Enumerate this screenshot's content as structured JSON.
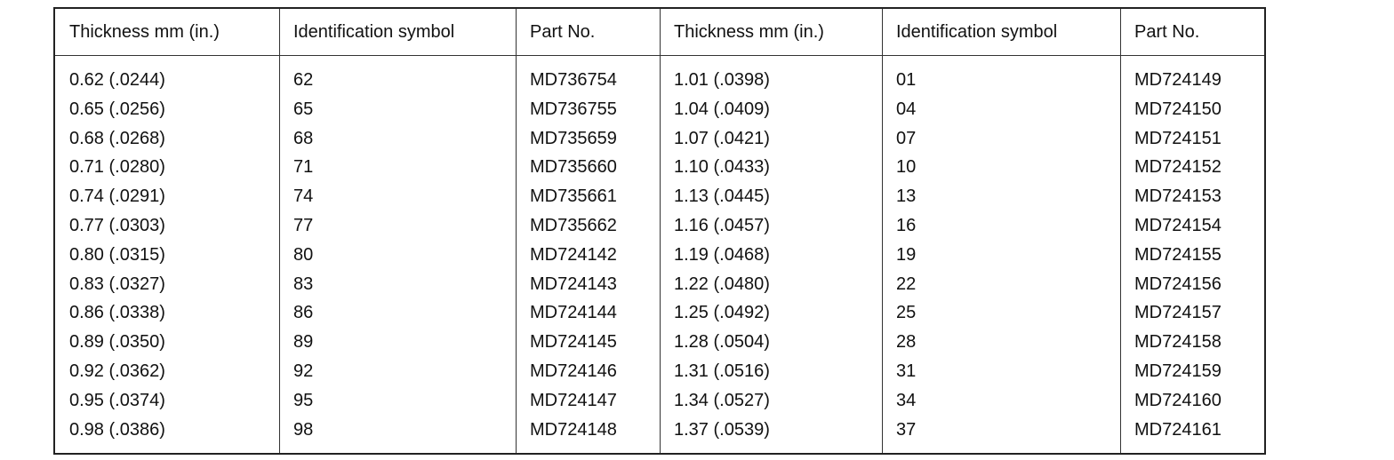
{
  "table": {
    "headers": [
      "Thickness mm (in.)",
      "Identification symbol",
      "Part No.",
      "Thickness mm (in.)",
      "Identification symbol",
      "Part No."
    ],
    "rows": [
      [
        "0.62 (.0244)",
        "62",
        "MD736754",
        "1.01 (.0398)",
        "01",
        "MD724149"
      ],
      [
        "0.65 (.0256)",
        "65",
        "MD736755",
        "1.04 (.0409)",
        "04",
        "MD724150"
      ],
      [
        "0.68 (.0268)",
        "68",
        "MD735659",
        "1.07 (.0421)",
        "07",
        "MD724151"
      ],
      [
        "0.71 (.0280)",
        "71",
        "MD735660",
        "1.10 (.0433)",
        "10",
        "MD724152"
      ],
      [
        "0.74 (.0291)",
        "74",
        "MD735661",
        "1.13 (.0445)",
        "13",
        "MD724153"
      ],
      [
        "0.77 (.0303)",
        "77",
        "MD735662",
        "1.16 (.0457)",
        "16",
        "MD724154"
      ],
      [
        "0.80 (.0315)",
        "80",
        "MD724142",
        "1.19 (.0468)",
        "19",
        "MD724155"
      ],
      [
        "0.83 (.0327)",
        "83",
        "MD724143",
        "1.22 (.0480)",
        "22",
        "MD724156"
      ],
      [
        "0.86 (.0338)",
        "86",
        "MD724144",
        "1.25 (.0492)",
        "25",
        "MD724157"
      ],
      [
        "0.89 (.0350)",
        "89",
        "MD724145",
        "1.28 (.0504)",
        "28",
        "MD724158"
      ],
      [
        "0.92 (.0362)",
        "92",
        "MD724146",
        "1.31 (.0516)",
        "31",
        "MD724159"
      ],
      [
        "0.95 (.0374)",
        "95",
        "MD724147",
        "1.34 (.0527)",
        "34",
        "MD724160"
      ],
      [
        "0.98 (.0386)",
        "98",
        "MD724148",
        "1.37 (.0539)",
        "37",
        "MD724161"
      ]
    ]
  }
}
